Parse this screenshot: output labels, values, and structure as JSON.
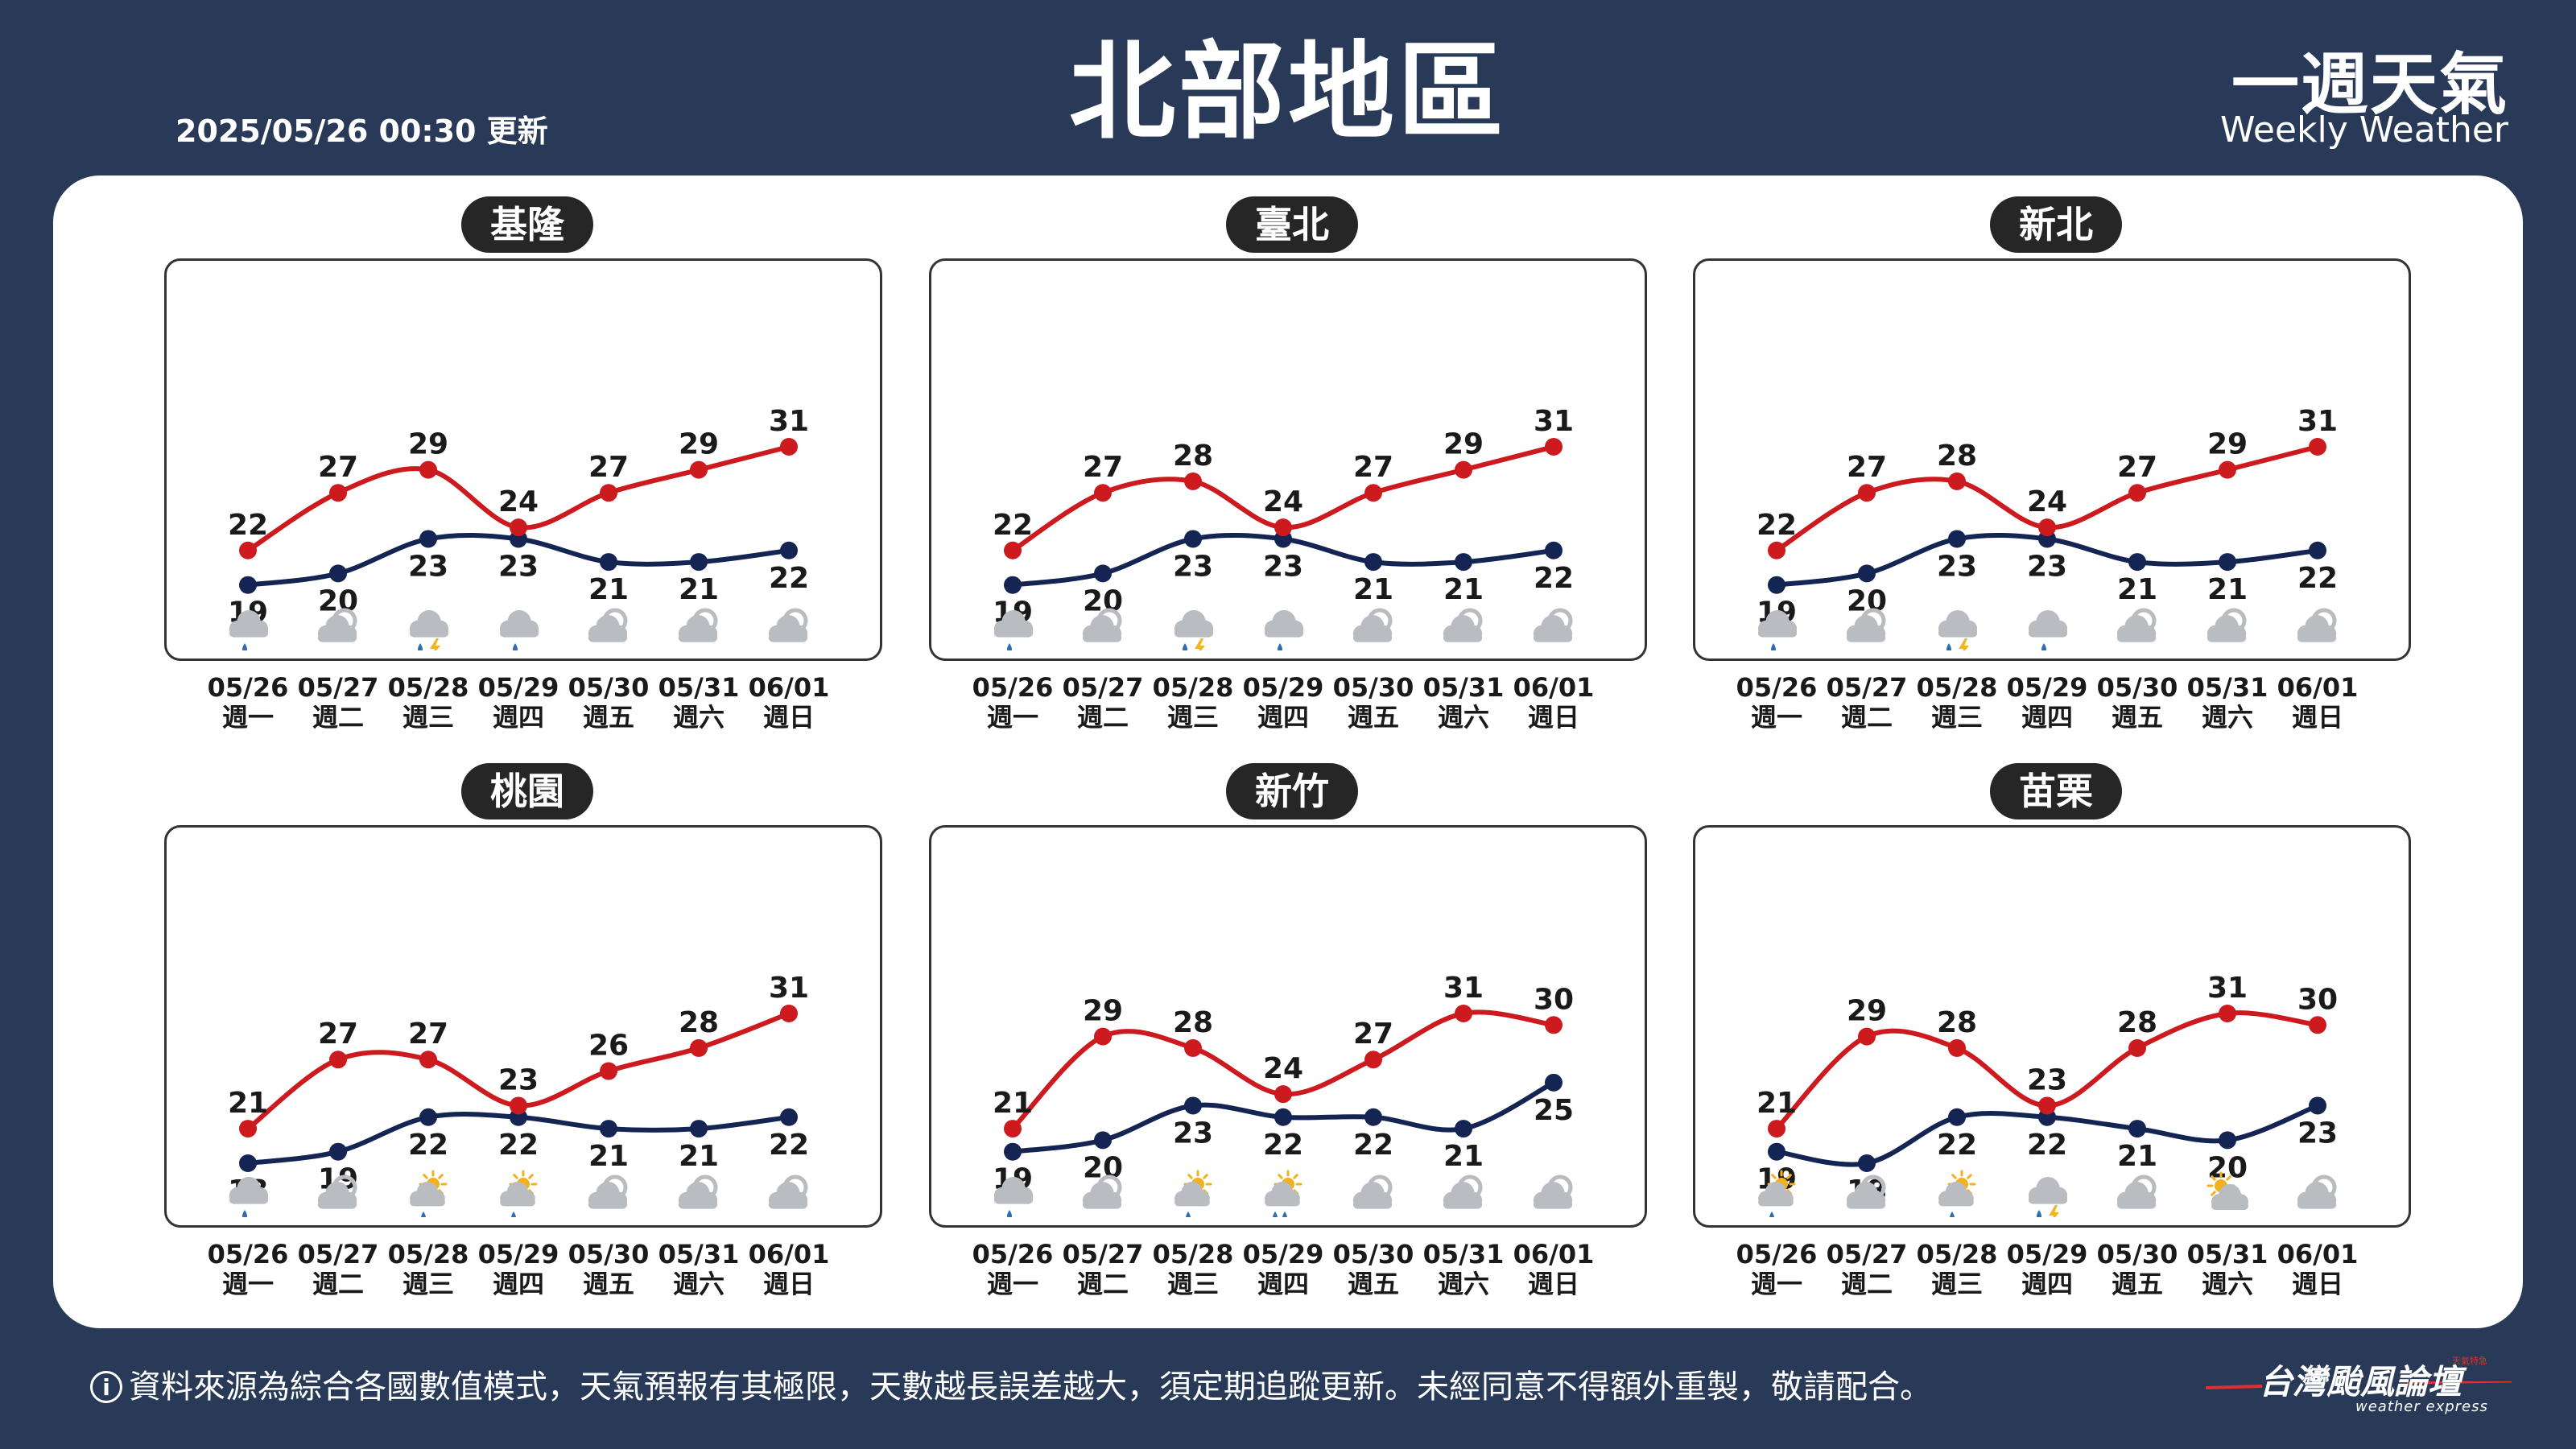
{
  "header": {
    "title": "北部地區",
    "update_time": "2025/05/26 00:30 更新",
    "brand_zh": "一週天氣",
    "brand_en": "Weekly Weather"
  },
  "footer": {
    "info_icon": "i",
    "disclaimer": "資料來源為綜合各國數值模式，天氣預報有其極限，天數越長誤差越大，須定期追蹤更新。未經同意不得額外重製，敬請配合。",
    "logo_zh": "台灣颱風論壇",
    "logo_en": "weather express",
    "logo_tag": "天氣特急"
  },
  "colors": {
    "background": "#283a57",
    "card": "#ffffff",
    "high_line": "#cc1a1f",
    "low_line": "#142453",
    "pill": "#262626",
    "cloud": "#b9bcc1",
    "rain": "#2e6db4",
    "sun": "#f3b11e",
    "lightning": "#f2b51d"
  },
  "chart_data": [
    {
      "type": "line",
      "title": "基隆",
      "dates": [
        "05/26",
        "05/27",
        "05/28",
        "05/29",
        "05/30",
        "05/31",
        "06/01"
      ],
      "weekdays": [
        "週一",
        "週二",
        "週三",
        "週四",
        "週五",
        "週六",
        "週日"
      ],
      "series": [
        {
          "values": [
            22,
            27,
            29,
            24,
            27,
            29,
            31
          ]
        },
        {
          "values": [
            19,
            20,
            23,
            23,
            21,
            21,
            22
          ]
        }
      ],
      "icons": [
        "cloud-rain-icon",
        "cloud-icon",
        "thunderstorm-icon",
        "cloud-rain-icon",
        "cloud-icon",
        "cloud-icon",
        "cloud-icon"
      ]
    },
    {
      "type": "line",
      "title": "臺北",
      "dates": [
        "05/26",
        "05/27",
        "05/28",
        "05/29",
        "05/30",
        "05/31",
        "06/01"
      ],
      "weekdays": [
        "週一",
        "週二",
        "週三",
        "週四",
        "週五",
        "週六",
        "週日"
      ],
      "series": [
        {
          "values": [
            22,
            27,
            28,
            24,
            27,
            29,
            31
          ]
        },
        {
          "values": [
            19,
            20,
            23,
            23,
            21,
            21,
            22
          ]
        }
      ],
      "icons": [
        "cloud-rain-icon",
        "cloud-icon",
        "thunderstorm-icon",
        "cloud-rain-icon",
        "cloud-icon",
        "cloud-icon",
        "cloud-icon"
      ]
    },
    {
      "type": "line",
      "title": "新北",
      "dates": [
        "05/26",
        "05/27",
        "05/28",
        "05/29",
        "05/30",
        "05/31",
        "06/01"
      ],
      "weekdays": [
        "週一",
        "週二",
        "週三",
        "週四",
        "週五",
        "週六",
        "週日"
      ],
      "series": [
        {
          "values": [
            22,
            27,
            28,
            24,
            27,
            29,
            31
          ]
        },
        {
          "values": [
            19,
            20,
            23,
            23,
            21,
            21,
            22
          ]
        }
      ],
      "icons": [
        "cloud-rain-icon",
        "cloud-icon",
        "thunderstorm-icon",
        "cloud-rain-icon",
        "cloud-icon",
        "cloud-icon",
        "cloud-icon"
      ]
    },
    {
      "type": "line",
      "title": "桃園",
      "dates": [
        "05/26",
        "05/27",
        "05/28",
        "05/29",
        "05/30",
        "05/31",
        "06/01"
      ],
      "weekdays": [
        "週一",
        "週二",
        "週三",
        "週四",
        "週五",
        "週六",
        "週日"
      ],
      "series": [
        {
          "values": [
            21,
            27,
            27,
            23,
            26,
            28,
            31
          ]
        },
        {
          "values": [
            18,
            19,
            22,
            22,
            21,
            21,
            22
          ]
        }
      ],
      "icons": [
        "cloud-rain-icon",
        "cloud-icon",
        "sun-cloud-rain-icon",
        "sun-cloud-rain-icon",
        "cloud-icon",
        "cloud-icon",
        "cloud-icon"
      ]
    },
    {
      "type": "line",
      "title": "新竹",
      "dates": [
        "05/26",
        "05/27",
        "05/28",
        "05/29",
        "05/30",
        "05/31",
        "06/01"
      ],
      "weekdays": [
        "週一",
        "週二",
        "週三",
        "週四",
        "週五",
        "週六",
        "週日"
      ],
      "series": [
        {
          "values": [
            21,
            29,
            28,
            24,
            27,
            31,
            30
          ]
        },
        {
          "values": [
            19,
            20,
            23,
            22,
            22,
            21,
            25
          ]
        }
      ],
      "icons": [
        "cloud-rain-icon",
        "cloud-icon",
        "sun-cloud-rain-icon",
        "sun-cloud-heavy-rain-icon",
        "cloud-icon",
        "cloud-icon",
        "cloud-icon"
      ]
    },
    {
      "type": "line",
      "title": "苗栗",
      "dates": [
        "05/26",
        "05/27",
        "05/28",
        "05/29",
        "05/30",
        "05/31",
        "06/01"
      ],
      "weekdays": [
        "週一",
        "週二",
        "週三",
        "週四",
        "週五",
        "週六",
        "週日"
      ],
      "series": [
        {
          "values": [
            21,
            29,
            28,
            23,
            28,
            31,
            30
          ]
        },
        {
          "values": [
            19,
            18,
            22,
            22,
            21,
            20,
            23
          ]
        }
      ],
      "icons": [
        "sun-cloud-rain-icon",
        "cloud-icon",
        "sun-cloud-rain-icon",
        "thunderstorm-icon",
        "cloud-icon",
        "sun-cloud-icon",
        "cloud-icon"
      ]
    }
  ]
}
